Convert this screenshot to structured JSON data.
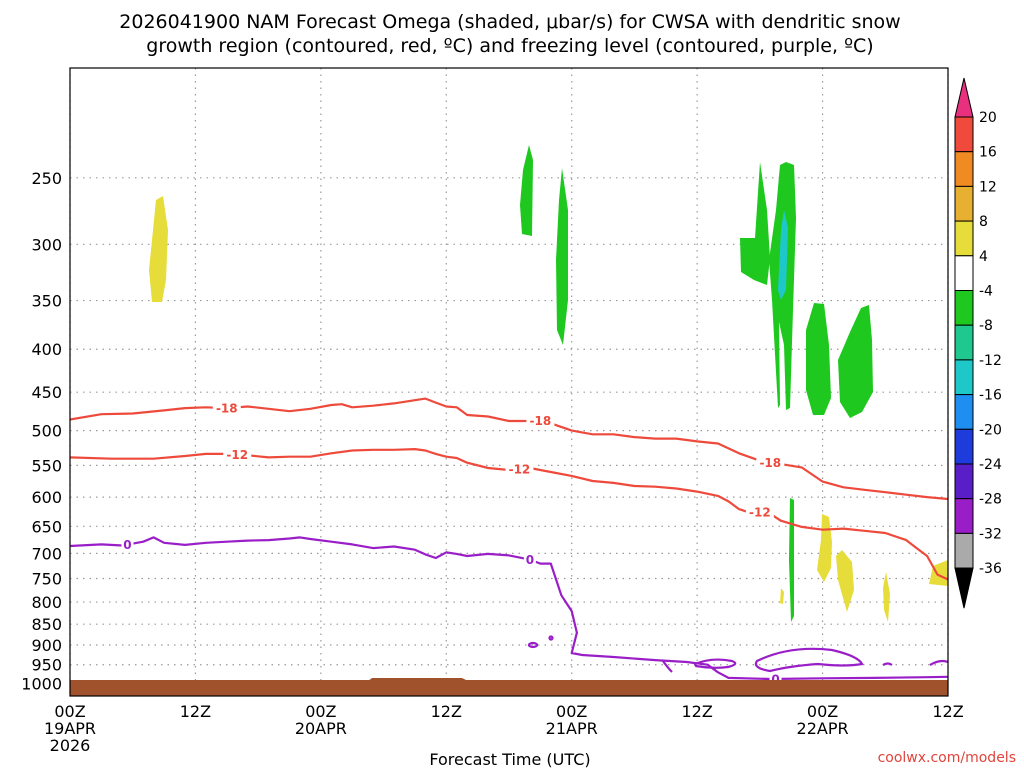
{
  "chart_data": {
    "type": "heatmap",
    "title_lines": [
      "2026041900 NAM Forecast Omega (shaded, μbar/s) for CWSA with dendritic snow",
      "growth region (contoured, red, ºC) and freezing level (contoured, purple, ºC)"
    ],
    "xlabel": "Forecast Time (UTC)",
    "credit": "coolwx.com/models",
    "x_ticks": [
      {
        "hour": 0,
        "lines": [
          "00Z",
          "19APR",
          "2026"
        ]
      },
      {
        "hour": 12,
        "lines": [
          "12Z"
        ]
      },
      {
        "hour": 24,
        "lines": [
          "00Z",
          "20APR"
        ]
      },
      {
        "hour": 36,
        "lines": [
          "12Z"
        ]
      },
      {
        "hour": 48,
        "lines": [
          "00Z",
          "21APR"
        ]
      },
      {
        "hour": 60,
        "lines": [
          "12Z"
        ]
      },
      {
        "hour": 72,
        "lines": [
          "00Z",
          "22APR"
        ]
      },
      {
        "hour": 84,
        "lines": [
          "12Z"
        ]
      }
    ],
    "xlim": [
      0,
      84
    ],
    "y_ticks": [
      250,
      300,
      350,
      400,
      450,
      500,
      550,
      600,
      650,
      700,
      750,
      800,
      850,
      900,
      950,
      1000
    ],
    "ylim": [
      1035,
      185
    ],
    "y_axis": "pressure (hPa), log scale",
    "grid": true,
    "colorbar": {
      "labels": [
        "20",
        "16",
        "12",
        "8",
        "4",
        "-4",
        "-8",
        "-12",
        "-16",
        "-20",
        "-24",
        "-28",
        "-32",
        "-36"
      ],
      "levels": [
        20,
        16,
        12,
        8,
        4,
        -4,
        -8,
        -12,
        -16,
        -20,
        -24,
        -28,
        -32,
        -36
      ],
      "colors": [
        "#e8307e",
        "#f04a3c",
        "#f08a22",
        "#e8b030",
        "#e6dc3a",
        "#ffffff",
        "#1ec81e",
        "#1ec88e",
        "#1ec8c8",
        "#1e8ef0",
        "#1e3cdc",
        "#5a1ec8",
        "#9a1ec8",
        "#aaaaaa",
        "#000000"
      ]
    },
    "contours": [
      {
        "kind": "dgz",
        "label": "-18",
        "color": "#ee4a3c",
        "label_hours": [
          15,
          45,
          67
        ],
        "points": [
          [
            0,
            485
          ],
          [
            3,
            478
          ],
          [
            6,
            477
          ],
          [
            9,
            473
          ],
          [
            11,
            470
          ],
          [
            13,
            469
          ],
          [
            15,
            470
          ],
          [
            17,
            468
          ],
          [
            19,
            471
          ],
          [
            21,
            474
          ],
          [
            23,
            471
          ],
          [
            25,
            466
          ],
          [
            26,
            465
          ],
          [
            27,
            469
          ],
          [
            29,
            467
          ],
          [
            31,
            464
          ],
          [
            33,
            460
          ],
          [
            34,
            458
          ],
          [
            35,
            463
          ],
          [
            36,
            468
          ],
          [
            37,
            469
          ],
          [
            38,
            479
          ],
          [
            40,
            481
          ],
          [
            42,
            487
          ],
          [
            44,
            487
          ],
          [
            45,
            486
          ],
          [
            46,
            490
          ],
          [
            48,
            500
          ],
          [
            50,
            505
          ],
          [
            52,
            505
          ],
          [
            54,
            509
          ],
          [
            56,
            511
          ],
          [
            58,
            511
          ],
          [
            60,
            515
          ],
          [
            62,
            518
          ],
          [
            64,
            532
          ],
          [
            66,
            543
          ],
          [
            68,
            548
          ],
          [
            70,
            553
          ],
          [
            72,
            575
          ],
          [
            74,
            584
          ],
          [
            76,
            588
          ],
          [
            78,
            592
          ],
          [
            80,
            596
          ],
          [
            82,
            600
          ],
          [
            84,
            603
          ]
        ]
      },
      {
        "kind": "dgz",
        "label": "-12",
        "color": "#ee4a3c",
        "label_hours": [
          16,
          43,
          66
        ],
        "points": [
          [
            0,
            538
          ],
          [
            4,
            540
          ],
          [
            8,
            540
          ],
          [
            11,
            536
          ],
          [
            13,
            533
          ],
          [
            15,
            533
          ],
          [
            17,
            535
          ],
          [
            19,
            538
          ],
          [
            21,
            537
          ],
          [
            23,
            537
          ],
          [
            25,
            532
          ],
          [
            27,
            528
          ],
          [
            29,
            527
          ],
          [
            31,
            527
          ],
          [
            33,
            526
          ],
          [
            34,
            528
          ],
          [
            35,
            533
          ],
          [
            36,
            537
          ],
          [
            37,
            539
          ],
          [
            38,
            546
          ],
          [
            40,
            554
          ],
          [
            42,
            557
          ],
          [
            44,
            554
          ],
          [
            46,
            560
          ],
          [
            48,
            566
          ],
          [
            50,
            574
          ],
          [
            52,
            577
          ],
          [
            54,
            582
          ],
          [
            56,
            583
          ],
          [
            58,
            586
          ],
          [
            60,
            591
          ],
          [
            62,
            598
          ],
          [
            63,
            607
          ],
          [
            64,
            620
          ],
          [
            65,
            626
          ],
          [
            66,
            625
          ],
          [
            67,
            628
          ],
          [
            68,
            640
          ],
          [
            70,
            651
          ],
          [
            72,
            656
          ],
          [
            74,
            654
          ],
          [
            76,
            658
          ],
          [
            78,
            662
          ],
          [
            80,
            675
          ],
          [
            81,
            690
          ],
          [
            82,
            705
          ],
          [
            83,
            742
          ],
          [
            84,
            752
          ]
        ]
      },
      {
        "kind": "freezing",
        "label": "0",
        "color": "#9a1ec8",
        "label_hours": [
          5.5,
          44,
          67.5
        ],
        "points": [
          [
            0,
            686
          ],
          [
            3,
            683
          ],
          [
            5,
            685
          ],
          [
            7,
            678
          ],
          [
            8,
            670
          ],
          [
            9,
            680
          ],
          [
            11,
            684
          ],
          [
            13,
            680
          ],
          [
            15,
            678
          ],
          [
            17,
            676
          ],
          [
            19,
            675
          ],
          [
            21,
            672
          ],
          [
            22,
            670
          ],
          [
            23,
            673
          ],
          [
            25,
            678
          ],
          [
            27,
            683
          ],
          [
            29,
            690
          ],
          [
            31,
            687
          ],
          [
            33,
            693
          ],
          [
            34,
            702
          ],
          [
            35,
            709
          ],
          [
            36,
            698
          ],
          [
            37,
            701
          ],
          [
            38,
            705
          ],
          [
            40,
            701
          ],
          [
            42,
            704
          ],
          [
            44,
            712
          ],
          [
            45,
            720
          ],
          [
            46,
            720
          ],
          [
            47,
            785
          ],
          [
            48,
            820
          ],
          [
            48.5,
            870
          ],
          [
            48,
            920
          ],
          [
            49,
            925
          ],
          [
            52,
            930
          ],
          [
            56,
            938
          ],
          [
            59,
            943
          ],
          [
            61,
            950
          ],
          [
            62,
            970
          ],
          [
            63,
            985
          ],
          [
            67,
            988
          ],
          [
            72,
            986
          ],
          [
            77,
            985
          ],
          [
            82,
            983
          ],
          [
            84,
            982
          ]
        ]
      }
    ]
  }
}
